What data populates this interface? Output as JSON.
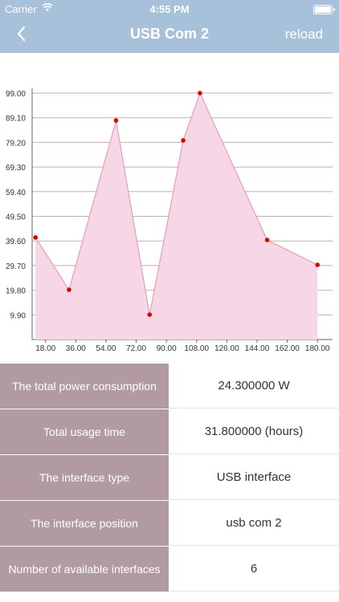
{
  "status_bar": {
    "carrier": "Carrier",
    "time": "4:55 PM"
  },
  "nav": {
    "title": "USB Com 2",
    "reload_label": "reload",
    "back_icon": "chevron-left-icon"
  },
  "colors": {
    "nav_bg": "#a8c1da",
    "area_fill": "#f7d6e6",
    "line": "#e58fb2",
    "point": "#e00000",
    "grid": "#c7b299",
    "key_bg": "#b29aa5"
  },
  "chart_data": {
    "type": "area",
    "x_ticks": [
      "18.00",
      "36.00",
      "54.00",
      "72.00",
      "90.00",
      "108.00",
      "126.00",
      "144.00",
      "162.00",
      "180.00"
    ],
    "y_ticks": [
      "9.90",
      "19.80",
      "29.70",
      "39.60",
      "49.50",
      "59.40",
      "69.30",
      "79.20",
      "89.10",
      "99.00"
    ],
    "xlim": [
      10,
      189
    ],
    "ylim": [
      0,
      99
    ],
    "grid": "horizontal",
    "points": [
      {
        "x": 12,
        "y": 41
      },
      {
        "x": 32,
        "y": 20
      },
      {
        "x": 60,
        "y": 88
      },
      {
        "x": 80,
        "y": 10
      },
      {
        "x": 100,
        "y": 80
      },
      {
        "x": 110,
        "y": 99
      },
      {
        "x": 150,
        "y": 40
      },
      {
        "x": 180,
        "y": 30
      }
    ]
  },
  "info_table": [
    {
      "label": "The total power consumption",
      "value": "24.300000 W"
    },
    {
      "label": "Total usage time",
      "value": "31.800000 (hours)"
    },
    {
      "label": "The interface type",
      "value": "USB interface"
    },
    {
      "label": "The interface position",
      "value": "usb com 2"
    },
    {
      "label": "Number of available interfaces",
      "value": "6"
    }
  ]
}
